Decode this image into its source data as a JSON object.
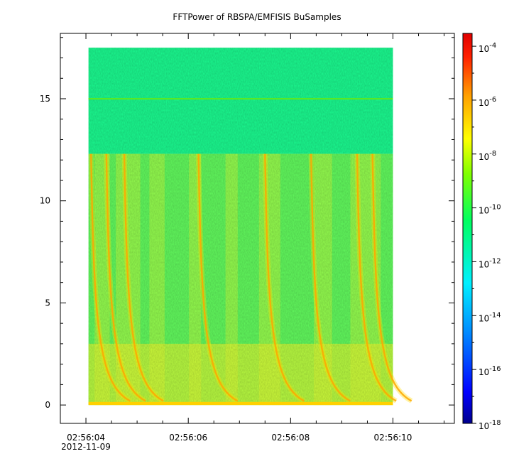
{
  "title": "FFTPower of RBSPA/EMFISIS  BuSamples",
  "chart_data": {
    "type": "heatmap",
    "title": "FFTPower of RBSPA/EMFISIS  BuSamples",
    "xlabel": "",
    "ylabel": "",
    "x_range": [
      "2012-11-09 02:56:03.5",
      "2012-11-09 02:56:11.2"
    ],
    "x_ticks": [
      {
        "time": "02:56:04",
        "date": "2012-11-09"
      },
      {
        "time": "02:56:06",
        "date": ""
      },
      {
        "time": "02:56:08",
        "date": ""
      },
      {
        "time": "02:56:10",
        "date": ""
      }
    ],
    "data_extent": {
      "x": [
        "2012-11-09 02:56:04.05",
        "2012-11-09 02:56:10.0"
      ],
      "y": [
        0,
        17.5
      ]
    },
    "ylim": [
      -0.9,
      18.2
    ],
    "y_ticks": [
      0,
      5,
      10,
      15
    ],
    "colorbar": {
      "scale": "log",
      "range": [
        1e-18,
        0.0003
      ],
      "tick_exponents": [
        -4,
        -6,
        -8,
        -10,
        -12,
        -14,
        -16,
        -18
      ],
      "tick_base": "10"
    },
    "features": {
      "background_level": 1e-12,
      "whistler_band_upper_y": 12.3,
      "line_at_y": 15,
      "line_level": 1e-10,
      "chorus_start_times": [
        "02:56:04.1",
        "02:56:04.4",
        "02:56:04.75",
        "02:56:06.2",
        "02:56:07.5",
        "02:56:08.4",
        "02:56:09.3",
        "02:56:09.6"
      ]
    }
  }
}
